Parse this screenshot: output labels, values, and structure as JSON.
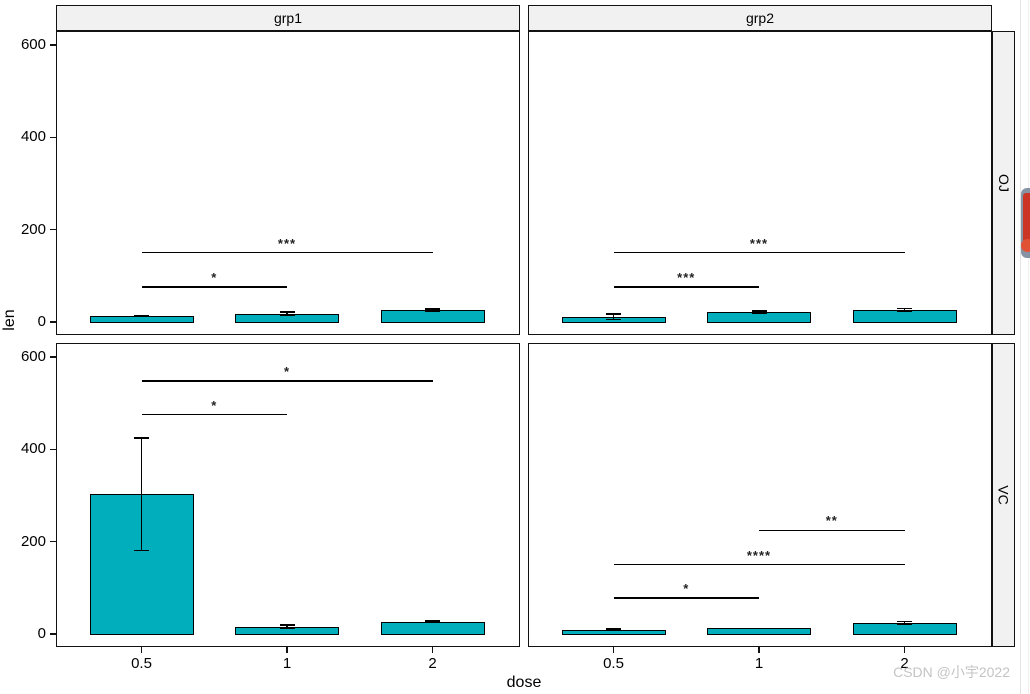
{
  "watermark": {
    "text": "CSDN @小宇2022"
  },
  "colors": {
    "bar_fill": "#00AFBB",
    "bar_border": "#000000",
    "strip_bg": "#f1f1f1",
    "significance_text": "#222222",
    "watermark_text": "#c4c4c4",
    "widget_gray": "#8593a3",
    "widget_red": "#cc3526",
    "widget_orange": "#e05233"
  },
  "chart_data": {
    "type": "bar",
    "title": "",
    "xlabel": "dose",
    "ylabel": "len",
    "x_categories": [
      "0.5",
      "1",
      "2"
    ],
    "yticks": [
      0,
      200,
      400,
      600
    ],
    "ylim": [
      -28,
      631
    ],
    "grid": false,
    "legend": "none",
    "facets": {
      "cols": [
        "grp1",
        "grp2"
      ],
      "rows": [
        "OJ",
        "VC"
      ]
    },
    "error_bar": "mean_sd",
    "panels": [
      {
        "row": "OJ",
        "col": "grp1",
        "means": [
          13,
          18,
          26
        ],
        "sd": [
          1.5,
          4,
          2
        ],
        "comparisons": [
          {
            "group1": "0.5",
            "group2": "2",
            "y": 150,
            "label": "***"
          },
          {
            "group1": "0.5",
            "group2": "1",
            "y": 76,
            "label": "*"
          }
        ]
      },
      {
        "row": "OJ",
        "col": "grp2",
        "means": [
          11.5,
          21,
          26.5
        ],
        "sd": [
          6,
          2.5,
          3
        ],
        "comparisons": [
          {
            "group1": "0.5",
            "group2": "2",
            "y": 150,
            "label": "***"
          },
          {
            "group1": "0.5",
            "group2": "1",
            "y": 76,
            "label": "***"
          }
        ]
      },
      {
        "row": "VC",
        "col": "grp1",
        "means": [
          303,
          16,
          26.5
        ],
        "sd": [
          122,
          3,
          2
        ],
        "comparisons": [
          {
            "group1": "0.5",
            "group2": "2",
            "y": 548,
            "label": "*"
          },
          {
            "group1": "0.5",
            "group2": "1",
            "y": 475,
            "label": "*"
          }
        ]
      },
      {
        "row": "VC",
        "col": "grp2",
        "means": [
          9,
          13.5,
          24
        ],
        "sd": [
          1.5,
          0,
          3
        ],
        "comparisons": [
          {
            "group1": "1",
            "group2": "2",
            "y": 225,
            "label": "**"
          },
          {
            "group1": "0.5",
            "group2": "2",
            "y": 150,
            "label": "****"
          },
          {
            "group1": "0.5",
            "group2": "1",
            "y": 78,
            "label": "*"
          }
        ]
      }
    ]
  }
}
